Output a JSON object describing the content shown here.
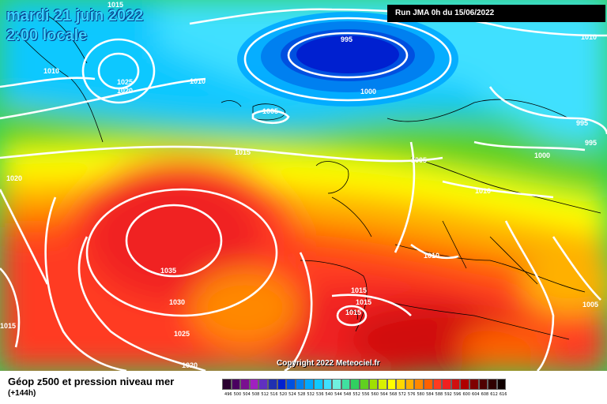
{
  "header": {
    "date": "mardi 21 juin 2022",
    "time": "2:00 locale",
    "run": "Run JMA 0h du 15/06/2022",
    "copyright": "Copyright 2022 Meteociel.fr"
  },
  "legend": {
    "title": "Géop z500 et pression niveau mer",
    "subtitle": "(+144h)",
    "colors": [
      "#2a0030",
      "#4a0060",
      "#7a1090",
      "#a020c0",
      "#6030c0",
      "#2030b0",
      "#0020d0",
      "#0050e0",
      "#0080f0",
      "#00a8ff",
      "#10c8ff",
      "#40e0ff",
      "#70f0e0",
      "#40e0a0",
      "#30d060",
      "#60d020",
      "#a0e000",
      "#d8f000",
      "#ffff00",
      "#ffd800",
      "#ffb000",
      "#ff8800",
      "#ff6000",
      "#ff3a20",
      "#f02020",
      "#d01010",
      "#b00000",
      "#800000",
      "#500000",
      "#300000",
      "#100000"
    ],
    "ticks": [
      "496",
      "500",
      "504",
      "508",
      "512",
      "516",
      "520",
      "524",
      "528",
      "532",
      "536",
      "540",
      "544",
      "548",
      "552",
      "556",
      "560",
      "564",
      "568",
      "572",
      "576",
      "580",
      "584",
      "588",
      "592",
      "596",
      "600",
      "604",
      "608",
      "612",
      "616"
    ]
  },
  "isobars": [
    {
      "label": "1015",
      "pos": "top-left"
    },
    {
      "label": "1010",
      "pos": "left"
    },
    {
      "label": "1025",
      "pos": "greenland-s"
    },
    {
      "label": "1020",
      "pos": "greenland-s2"
    },
    {
      "label": "1010",
      "pos": "mid-atlantic-n"
    },
    {
      "label": "995",
      "pos": "low-center"
    },
    {
      "label": "1000",
      "pos": "iceland-e"
    },
    {
      "label": "1010",
      "pos": "top-right"
    },
    {
      "label": "1005",
      "pos": "iceland"
    },
    {
      "label": "995",
      "pos": "scandinavia-1"
    },
    {
      "label": "995",
      "pos": "scandinavia-2"
    },
    {
      "label": "1000",
      "pos": "russia-w"
    },
    {
      "label": "1015",
      "pos": "mid-atlantic"
    },
    {
      "label": "1005",
      "pos": "north-sea"
    },
    {
      "label": "1010",
      "pos": "germany"
    },
    {
      "label": "1020",
      "pos": "west"
    },
    {
      "label": "1010",
      "pos": "alps"
    },
    {
      "label": "1035",
      "pos": "high-center"
    },
    {
      "label": "1030",
      "pos": "high-s"
    },
    {
      "label": "1025",
      "pos": "high-s2"
    },
    {
      "label": "1020",
      "pos": "bottom"
    },
    {
      "label": "1015",
      "pos": "bottom-left"
    },
    {
      "label": "1015",
      "pos": "spain-1"
    },
    {
      "label": "1015",
      "pos": "spain-2"
    },
    {
      "label": "1015",
      "pos": "spain-3"
    },
    {
      "label": "1005",
      "pos": "east"
    }
  ]
}
